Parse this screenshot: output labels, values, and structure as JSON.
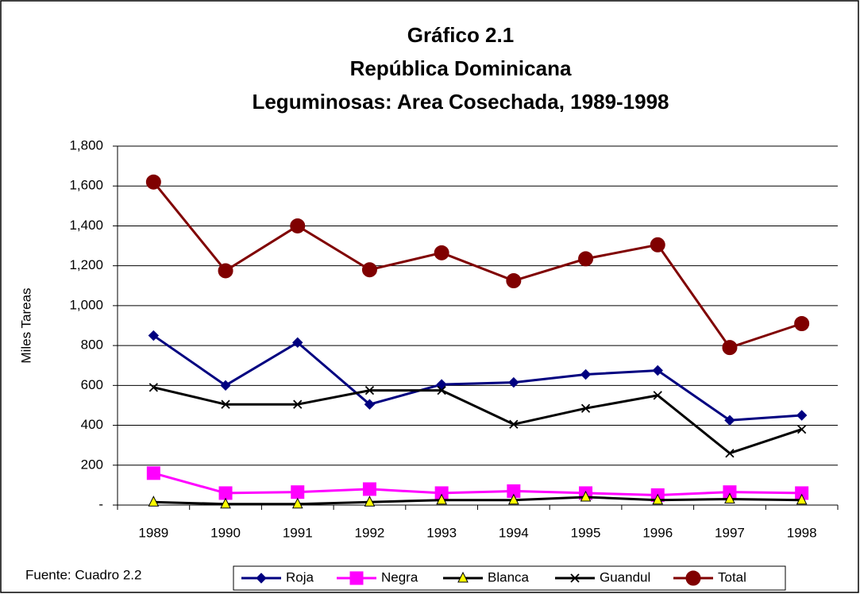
{
  "chart_data": {
    "type": "line",
    "title": [
      "Gráfico 2.1",
      "República Dominicana",
      "Leguminosas: Area Cosechada, 1989-1998"
    ],
    "y_label": "Miles Tareas",
    "source": "Fuente: Cuadro 2.2",
    "categories": [
      "1989",
      "1990",
      "1991",
      "1992",
      "1993",
      "1994",
      "1995",
      "1996",
      "1997",
      "1998"
    ],
    "ylim": [
      0,
      1800
    ],
    "yticks": [
      {
        "value": 0,
        "label": "-"
      },
      {
        "value": 200,
        "label": "200"
      },
      {
        "value": 400,
        "label": "400"
      },
      {
        "value": 600,
        "label": "600"
      },
      {
        "value": 800,
        "label": "800"
      },
      {
        "value": 1000,
        "label": "1,000"
      },
      {
        "value": 1200,
        "label": "1,200"
      },
      {
        "value": 1400,
        "label": "1,400"
      },
      {
        "value": 1600,
        "label": "1,600"
      },
      {
        "value": 1800,
        "label": "1,800"
      }
    ],
    "grid": true,
    "legend": "bottom",
    "series": [
      {
        "name": "Roja",
        "color": "#000080",
        "marker": "diamond",
        "marker_fill": "#000080",
        "values": [
          850,
          600,
          815,
          505,
          605,
          615,
          655,
          675,
          425,
          450
        ]
      },
      {
        "name": "Negra",
        "color": "#ff00ff",
        "marker": "square",
        "marker_fill": "#ff00ff",
        "values": [
          160,
          60,
          65,
          80,
          60,
          70,
          60,
          50,
          65,
          60
        ]
      },
      {
        "name": "Blanca",
        "color": "#000000",
        "marker": "triangle",
        "marker_fill": "#ffff00",
        "values": [
          15,
          5,
          5,
          15,
          25,
          25,
          40,
          25,
          30,
          25
        ]
      },
      {
        "name": "Guandul",
        "color": "#000000",
        "marker": "x",
        "marker_fill": "#000000",
        "values": [
          590,
          505,
          505,
          575,
          575,
          405,
          485,
          550,
          260,
          380
        ]
      },
      {
        "name": "Total",
        "color": "#800000",
        "marker": "circle",
        "marker_fill": "#800000",
        "values": [
          1620,
          1175,
          1400,
          1180,
          1265,
          1125,
          1235,
          1305,
          790,
          910
        ]
      }
    ]
  }
}
